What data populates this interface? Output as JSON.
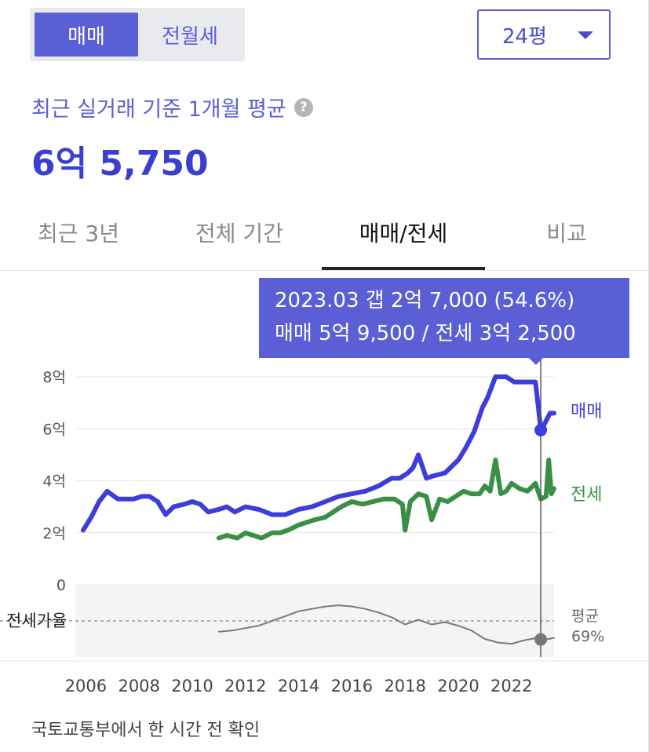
{
  "trade_type": {
    "options": [
      "매매",
      "전월세"
    ],
    "selected": "매매"
  },
  "size_select": {
    "value": "24평"
  },
  "summary": {
    "label": "최근 실거래 기준 1개월 평균",
    "help_icon": "question-icon",
    "price": "6억 5,750"
  },
  "tabs": [
    {
      "label": "최근 3년"
    },
    {
      "label": "전체 기간"
    },
    {
      "label": "매매/전세",
      "active": true
    },
    {
      "label": "비교"
    }
  ],
  "tooltip": {
    "line1": "2023.03  갭 2억 7,000 (54.6%)",
    "line2": "매매 5억 9,500 / 전세 3억 2,500"
  },
  "footer": "국토교통부에서 한 시간 전 확인",
  "colors": {
    "accent": "#5a5fd6",
    "sale_line": "#3d3ddc",
    "jeonse_line": "#3a8f46",
    "ratio_line": "#7a7a7a"
  },
  "chart_data": {
    "type": "line",
    "x_ticks": [
      "2006",
      "2008",
      "2010",
      "2012",
      "2014",
      "2016",
      "2018",
      "2020",
      "2022"
    ],
    "y_ticks": [
      "8억",
      "6억",
      "4억",
      "2억",
      "0"
    ],
    "xlim": [
      2005.9,
      2023.6
    ],
    "ylim": [
      0,
      8
    ],
    "series": [
      {
        "name": "매매",
        "color": "#3d3ddc",
        "x": [
          2005.9,
          2006.2,
          2006.5,
          2006.8,
          2007.2,
          2007.5,
          2007.8,
          2008.1,
          2008.4,
          2008.7,
          2009.0,
          2009.3,
          2009.7,
          2010.0,
          2010.3,
          2010.6,
          2011.0,
          2011.3,
          2011.6,
          2012.0,
          2012.5,
          2013.0,
          2013.5,
          2014.0,
          2014.5,
          2015.0,
          2015.5,
          2016.0,
          2016.5,
          2017.0,
          2017.5,
          2017.8,
          2018.1,
          2018.3,
          2018.5,
          2018.8,
          2019.1,
          2019.5,
          2019.8,
          2020.0,
          2020.3,
          2020.6,
          2020.9,
          2021.1,
          2021.4,
          2021.8,
          2022.1,
          2022.4,
          2022.7,
          2022.9,
          2023.1,
          2023.2,
          2023.3,
          2023.45,
          2023.6
        ],
        "values": [
          2.1,
          2.6,
          3.2,
          3.6,
          3.3,
          3.3,
          3.3,
          3.4,
          3.4,
          3.2,
          2.7,
          3.0,
          3.1,
          3.2,
          3.1,
          2.8,
          2.9,
          3.0,
          2.8,
          3.0,
          2.9,
          2.7,
          2.7,
          2.9,
          3.0,
          3.2,
          3.4,
          3.5,
          3.6,
          3.8,
          4.1,
          4.1,
          4.3,
          4.5,
          5.0,
          4.1,
          4.2,
          4.3,
          4.6,
          4.8,
          5.3,
          5.9,
          6.8,
          7.2,
          8.0,
          8.0,
          7.8,
          7.8,
          7.8,
          7.8,
          6.0,
          6.1,
          6.3,
          6.6,
          6.6
        ]
      },
      {
        "name": "전세",
        "color": "#3a8f46",
        "x": [
          2011.0,
          2011.3,
          2011.7,
          2012.0,
          2012.3,
          2012.6,
          2013.0,
          2013.3,
          2013.6,
          2014.0,
          2014.3,
          2014.6,
          2015.0,
          2015.3,
          2015.6,
          2016.0,
          2016.4,
          2016.8,
          2017.2,
          2017.6,
          2017.9,
          2018.0,
          2018.2,
          2018.5,
          2018.8,
          2019.0,
          2019.3,
          2019.6,
          2019.9,
          2020.2,
          2020.5,
          2020.8,
          2021.0,
          2021.2,
          2021.4,
          2021.6,
          2021.8,
          2022.0,
          2022.3,
          2022.6,
          2022.9,
          2023.1,
          2023.3,
          2023.4,
          2023.5,
          2023.6
        ],
        "values": [
          1.8,
          1.9,
          1.8,
          2.0,
          1.9,
          1.8,
          2.0,
          2.0,
          2.1,
          2.3,
          2.4,
          2.5,
          2.6,
          2.8,
          3.0,
          3.2,
          3.1,
          3.2,
          3.3,
          3.3,
          3.1,
          2.1,
          3.2,
          3.5,
          3.4,
          2.5,
          3.3,
          3.2,
          3.4,
          3.6,
          3.5,
          3.5,
          3.8,
          3.6,
          4.8,
          3.5,
          3.6,
          3.9,
          3.7,
          3.6,
          3.9,
          3.3,
          3.4,
          4.8,
          3.5,
          3.7
        ]
      },
      {
        "name": "전세가율",
        "color": "#7a7a7a",
        "x": [
          2011.0,
          2011.5,
          2012.0,
          2012.5,
          2013.0,
          2013.5,
          2014.0,
          2014.5,
          2015.0,
          2015.5,
          2016.0,
          2016.5,
          2017.0,
          2017.5,
          2018.0,
          2018.5,
          2019.0,
          2019.5,
          2020.0,
          2020.5,
          2021.0,
          2021.5,
          2022.0,
          2022.5,
          2023.0,
          2023.2,
          2023.4,
          2023.6
        ],
        "values": [
          61,
          62,
          64,
          66,
          70,
          74,
          78,
          80,
          82,
          83,
          82,
          80,
          77,
          73,
          67,
          71,
          67,
          69,
          66,
          62,
          55,
          52,
          51,
          54,
          56,
          54,
          55,
          56
        ]
      }
    ],
    "series_labels": {
      "sale": "매매",
      "jeonse": "전세"
    },
    "ratio_panel": {
      "label": "전세가율",
      "avg_label": "평균",
      "avg_value": "69%",
      "avg": 69,
      "ylim": [
        40,
        100
      ]
    },
    "marker": {
      "x": 2023.1,
      "sale": 5.95,
      "ratio": 54.6
    }
  }
}
